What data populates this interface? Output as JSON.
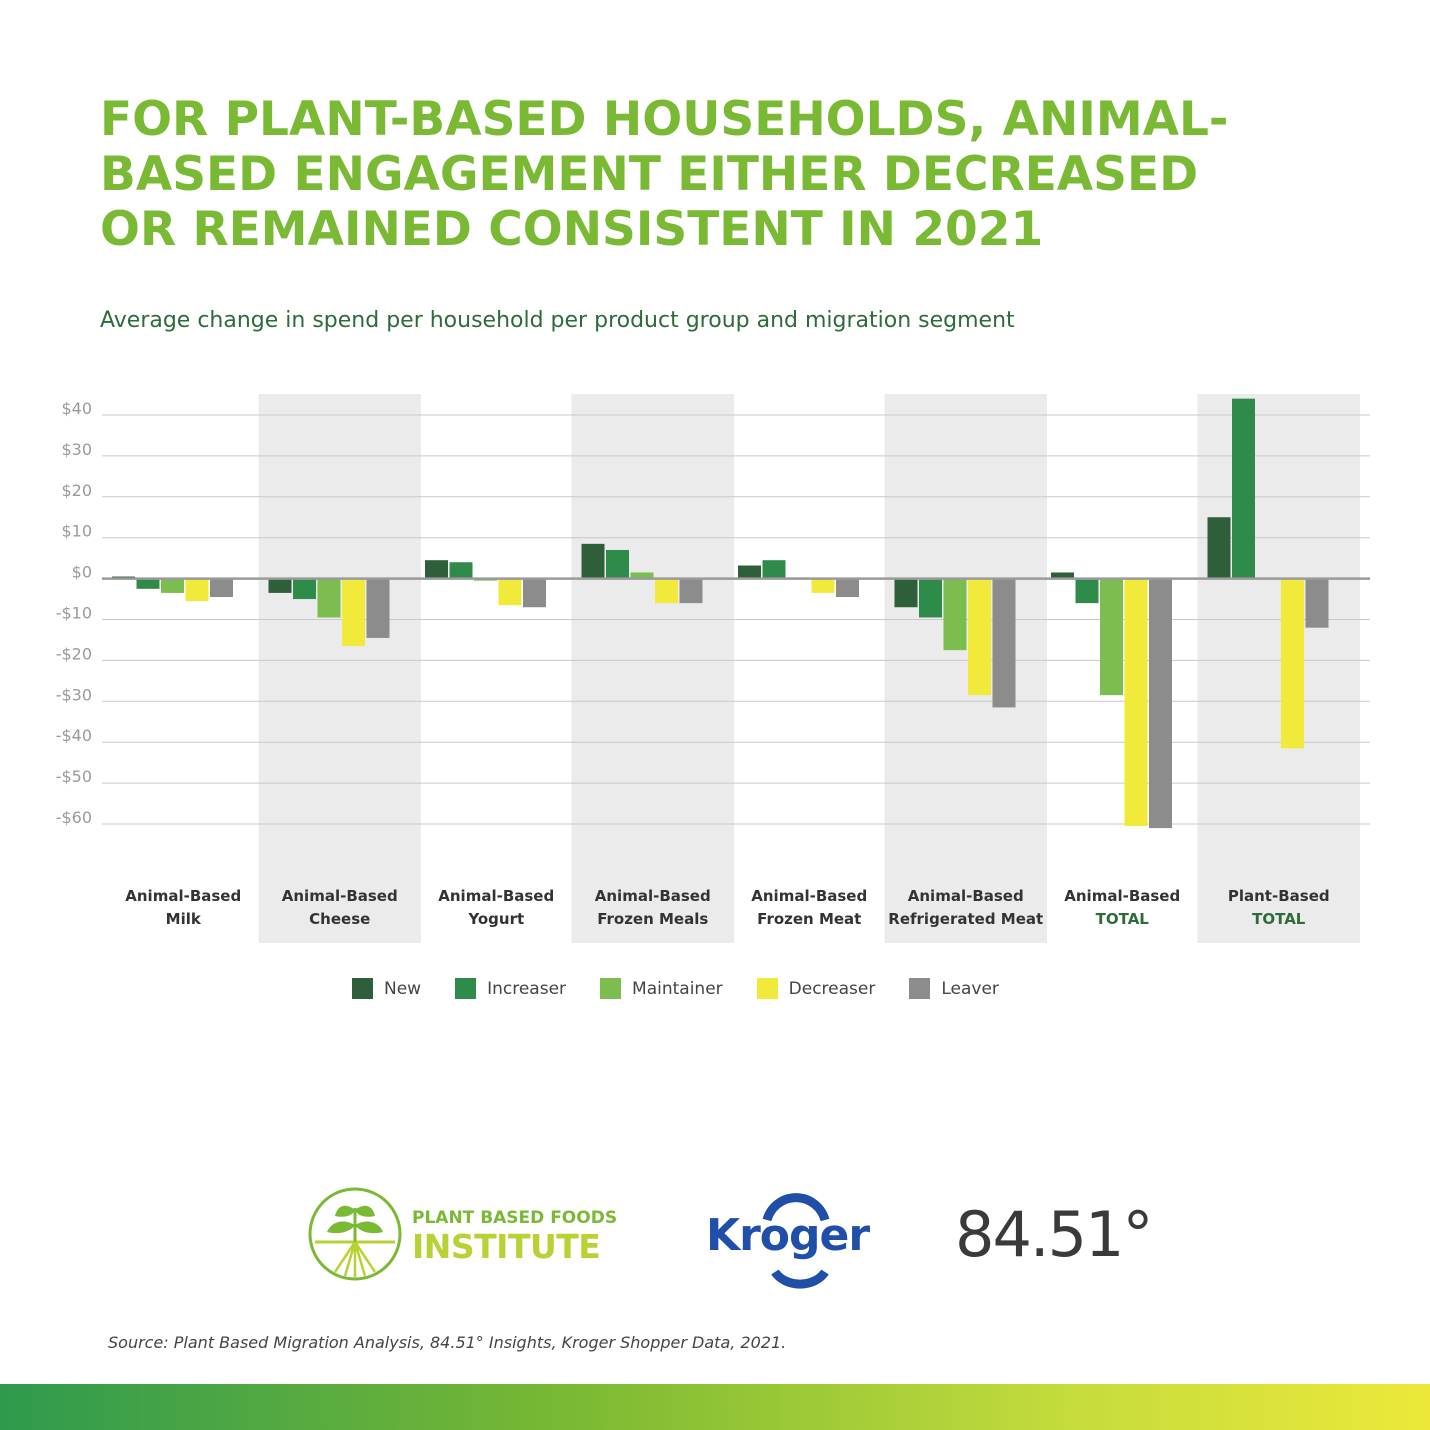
{
  "headline": {
    "lines": [
      "FOR PLANT-BASED HOUSEHOLDS, ANIMAL-",
      "BASED ENGAGEMENT EITHER DECREASED",
      "OR REMAINED CONSISTENT IN 2021"
    ]
  },
  "subtitle": "Average change in spend per household per product group and migration segment",
  "colors": {
    "headline": "#7ab933",
    "subtitle": "#2e6b3a",
    "band": "#ebebeb",
    "New": "#2f5e3a",
    "Increaser": "#2e8b4a",
    "Maintainer": "#7cbd4f",
    "Decreaser": "#f2ea3a",
    "Leaver": "#8c8c8c"
  },
  "chart_data": {
    "type": "bar",
    "title": "Average change in spend per household per product group and migration segment",
    "ylabel": "",
    "xlabel": "",
    "ylim": [
      -60,
      40
    ],
    "yticks": [
      40,
      30,
      20,
      10,
      0,
      -10,
      -20,
      -30,
      -40,
      -50,
      -60
    ],
    "ytick_labels": [
      "$40",
      "$30",
      "$20",
      "$10",
      "$0",
      "-$10",
      "-$20",
      "-$30",
      "-$40",
      "-$50",
      "-$60"
    ],
    "grid": true,
    "legend": "bottom",
    "categories": [
      {
        "line1": "Animal-Based",
        "line2": "Milk",
        "accent": false
      },
      {
        "line1": "Animal-Based",
        "line2": "Cheese",
        "accent": false
      },
      {
        "line1": "Animal-Based",
        "line2": "Yogurt",
        "accent": false
      },
      {
        "line1": "Animal-Based",
        "line2": "Frozen Meals",
        "accent": false
      },
      {
        "line1": "Animal-Based",
        "line2": "Frozen Meat",
        "accent": false
      },
      {
        "line1": "Animal-Based",
        "line2": "Refrigerated Meat",
        "accent": false
      },
      {
        "line1": "Animal-Based",
        "line2": "TOTAL",
        "accent": true
      },
      {
        "line1": "Plant-Based",
        "line2": "TOTAL",
        "accent": true
      }
    ],
    "series": [
      {
        "name": "New",
        "values": [
          0.5,
          -3.5,
          4.5,
          8.5,
          3.2,
          -7,
          1.5,
          15
        ]
      },
      {
        "name": "Increaser",
        "values": [
          -2.5,
          -5,
          4,
          7,
          4.5,
          -9.5,
          -6,
          44
        ]
      },
      {
        "name": "Maintainer",
        "values": [
          -3.5,
          -9.5,
          -0.5,
          1.5,
          0.3,
          -17.5,
          -28.5,
          0
        ]
      },
      {
        "name": "Decreaser",
        "values": [
          -5.5,
          -16.5,
          -6.5,
          -6,
          -3.5,
          -28.5,
          -60.5,
          -41.5
        ]
      },
      {
        "name": "Leaver",
        "values": [
          -4.5,
          -14.5,
          -7,
          -6,
          -4.5,
          -31.5,
          -61,
          -12
        ]
      }
    ]
  },
  "logos": {
    "pbfi_line1": "PLANT BASED FOODS",
    "pbfi_line2": "INSTITUTE",
    "kroger": "Kroger",
    "f8451": "84.51°"
  },
  "source": "Source: Plant Based Migration Analysis, 84.51° Insights, Kroger Shopper Data, 2021."
}
